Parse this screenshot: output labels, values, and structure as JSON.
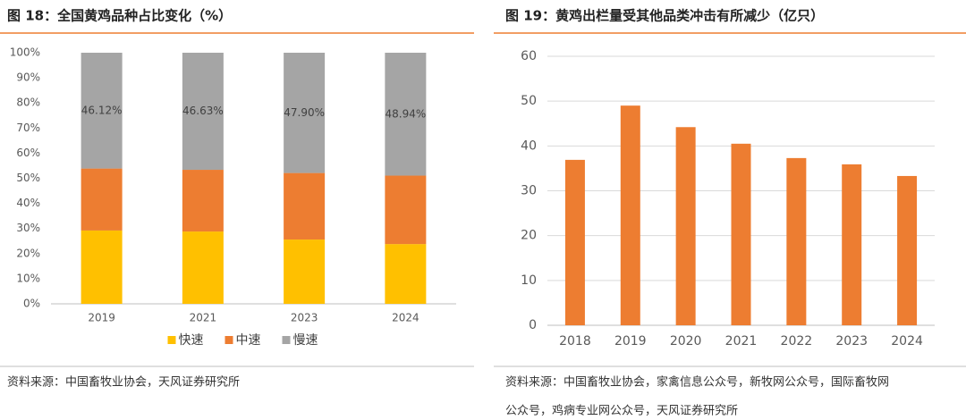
{
  "chart_data": [
    {
      "type": "stacked_bar",
      "title": "图 18：全国黄鸡品种占比变化（%）",
      "categories": [
        "2019",
        "2021",
        "2023",
        "2024"
      ],
      "series": [
        {
          "name": "快速",
          "color": "#FFC000",
          "values": [
            29.2,
            28.8,
            25.6,
            23.8
          ]
        },
        {
          "name": "中速",
          "color": "#ED7D31",
          "values": [
            24.68,
            24.57,
            26.5,
            27.26
          ]
        },
        {
          "name": "慢速",
          "color": "#A5A5A5",
          "values": [
            46.12,
            46.63,
            47.9,
            48.94
          ],
          "value_labels": [
            "46.12%",
            "46.63%",
            "47.90%",
            "48.94%"
          ]
        }
      ],
      "ylim": [
        0,
        100
      ],
      "yticks": [
        {
          "value": 0,
          "label": "0%"
        },
        {
          "value": 10,
          "label": "10%"
        },
        {
          "value": 20,
          "label": "20%"
        },
        {
          "value": 30,
          "label": "30%"
        },
        {
          "value": 40,
          "label": "40%"
        },
        {
          "value": 50,
          "label": "50%"
        },
        {
          "value": 60,
          "label": "60%"
        },
        {
          "value": 70,
          "label": "70%"
        },
        {
          "value": 80,
          "label": "80%"
        },
        {
          "value": 90,
          "label": "90%"
        },
        {
          "value": 100,
          "label": "100%"
        }
      ],
      "grid": false,
      "legend": "bottom",
      "source": "资料来源：中国畜牧业协会，天风证券研究所"
    },
    {
      "type": "bar",
      "title": "图 19：黄鸡出栏量受其他品类冲击有所减少（亿只）",
      "categories": [
        "2018",
        "2019",
        "2020",
        "2021",
        "2022",
        "2023",
        "2024"
      ],
      "values": [
        36.9,
        49.0,
        44.2,
        40.5,
        37.3,
        35.9,
        33.3
      ],
      "color": "#ED7D31",
      "ylim": [
        0,
        60
      ],
      "yticks": [
        0,
        10,
        20,
        30,
        40,
        50,
        60
      ],
      "grid": true,
      "source": [
        "资料来源：中国畜牧业协会，家禽信息公众号，新牧网公众号，国际畜牧网",
        "公众号，鸡病专业网公众号，天风证券研究所"
      ]
    }
  ]
}
